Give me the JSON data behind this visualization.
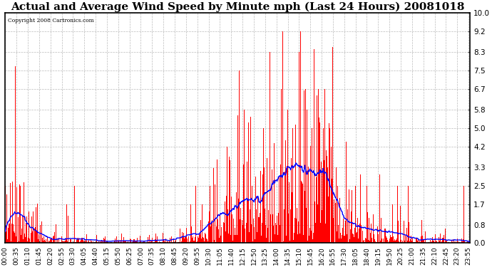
{
  "title": "Actual and Average Wind Speed by Minute mph (Last 24 Hours) 20081018",
  "copyright": "Copyright 2008 Cartronics.com",
  "yticks": [
    0.0,
    0.8,
    1.7,
    2.5,
    3.3,
    4.2,
    5.0,
    5.8,
    6.7,
    7.5,
    8.3,
    9.2,
    10.0
  ],
  "ymax": 10.0,
  "ymin": 0.0,
  "bar_color": "#ff0000",
  "line_color": "#0000ff",
  "bg_color": "#ffffff",
  "grid_color": "#bbbbbb",
  "title_fontsize": 11,
  "xlabel_fontsize": 6.5,
  "ylabel_fontsize": 7.5,
  "xtick_labels": [
    "00:00",
    "00:35",
    "01:10",
    "01:45",
    "02:20",
    "02:55",
    "03:30",
    "04:05",
    "04:40",
    "05:15",
    "05:50",
    "06:25",
    "07:00",
    "07:35",
    "08:10",
    "08:45",
    "09:20",
    "09:55",
    "10:30",
    "11:05",
    "11:40",
    "12:15",
    "12:50",
    "13:25",
    "14:00",
    "14:35",
    "15:10",
    "15:45",
    "16:20",
    "16:55",
    "17:30",
    "18:05",
    "18:40",
    "19:15",
    "19:50",
    "20:25",
    "21:00",
    "21:35",
    "22:10",
    "22:45",
    "23:20",
    "23:55"
  ],
  "figwidth": 6.9,
  "figheight": 3.75,
  "dpi": 100
}
